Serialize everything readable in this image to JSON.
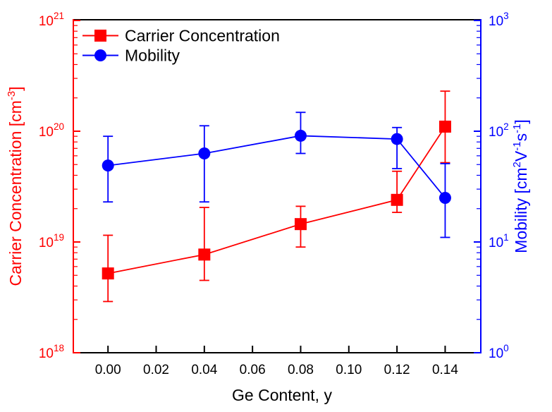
{
  "chart_data": {
    "type": "line",
    "title": "",
    "background": "#ffffff",
    "frame_color": "#000000",
    "grid": false,
    "legend": {
      "position": "top-left-inside",
      "entries": [
        "Carrier Concentration",
        "Mobility"
      ]
    },
    "x_axis": {
      "title": "Ge Content, y",
      "min": -0.0144,
      "max": 0.1548,
      "color": "#000000",
      "ticks": [
        {
          "value": 0.0,
          "label": "0.00"
        },
        {
          "value": 0.02,
          "label": "0.02"
        },
        {
          "value": 0.04,
          "label": "0.04"
        },
        {
          "value": 0.06,
          "label": "0.06"
        },
        {
          "value": 0.08,
          "label": "0.08"
        },
        {
          "value": 0.1,
          "label": "0.10"
        },
        {
          "value": 0.12,
          "label": "0.12"
        },
        {
          "value": 0.14,
          "label": "0.14"
        }
      ]
    },
    "left_axis": {
      "title_parts": [
        {
          "t": "Carrier Concentration [cm"
        },
        {
          "t": "-3",
          "sup": true
        },
        {
          "t": "]"
        }
      ],
      "scale": "log",
      "min": 1e+18,
      "max": 1e+21,
      "color": "#ff0000",
      "tick_base": "10",
      "tick_exponents": [
        18,
        19,
        20,
        21
      ]
    },
    "right_axis": {
      "title_parts": [
        {
          "t": "Mobility [cm"
        },
        {
          "t": "2",
          "sup": true
        },
        {
          "t": "V"
        },
        {
          "t": "-1",
          "sup": true
        },
        {
          "t": "s"
        },
        {
          "t": "-1",
          "sup": true
        },
        {
          "t": "]"
        }
      ],
      "scale": "log",
      "min": 1,
      "max": 1000,
      "color": "#0000ff",
      "tick_base": "10",
      "tick_exponents": [
        0,
        1,
        2,
        3
      ]
    },
    "series": [
      {
        "name": "Carrier Concentration",
        "color": "#ff0000",
        "marker": "square",
        "axis": "left",
        "points": [
          {
            "x": 0.0,
            "y": 5.2e+18,
            "y_lo": 2.9e+18,
            "y_hi": 1.15e+19
          },
          {
            "x": 0.04,
            "y": 7.7e+18,
            "y_lo": 4.5e+18,
            "y_hi": 2.05e+19
          },
          {
            "x": 0.08,
            "y": 1.45e+19,
            "y_lo": 9e+18,
            "y_hi": 2.1e+19
          },
          {
            "x": 0.12,
            "y": 2.4e+19,
            "y_lo": 1.85e+19,
            "y_hi": 4.35e+19
          },
          {
            "x": 0.14,
            "y": 1.1e+20,
            "y_lo": 5.2e+19,
            "y_hi": 2.3e+20
          }
        ]
      },
      {
        "name": "Mobility",
        "color": "#0000ff",
        "marker": "circle",
        "axis": "right",
        "points": [
          {
            "x": 0.0,
            "y": 49,
            "y_lo": 23,
            "y_hi": 90
          },
          {
            "x": 0.04,
            "y": 63,
            "y_lo": 23,
            "y_hi": 112
          },
          {
            "x": 0.08,
            "y": 91,
            "y_lo": 63,
            "y_hi": 148
          },
          {
            "x": 0.12,
            "y": 85,
            "y_lo": 46,
            "y_hi": 108
          },
          {
            "x": 0.14,
            "y": 25,
            "y_lo": 11,
            "y_hi": 51
          }
        ]
      }
    ]
  }
}
